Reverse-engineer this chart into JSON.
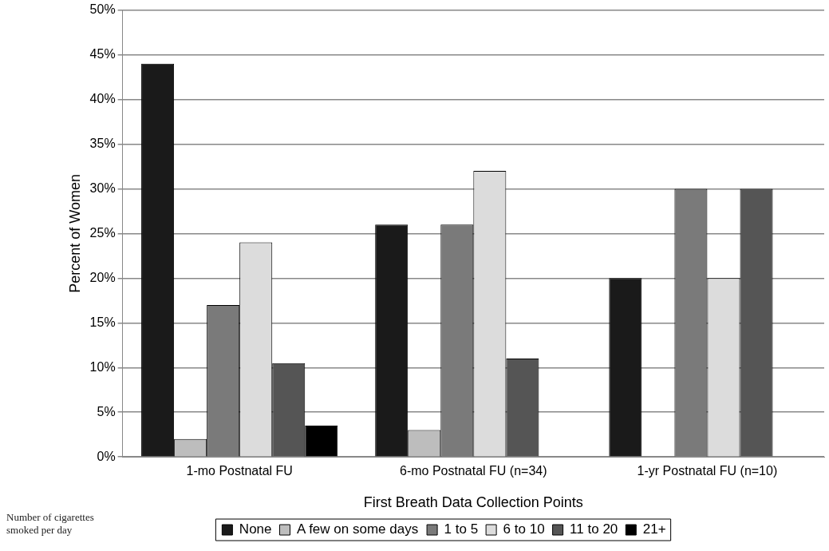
{
  "chart_data": {
    "type": "bar",
    "xlabel": "First Breath Data Collection Points",
    "ylabel": "Percent of Women",
    "legend_title": "Number of cigarettes smoked per day",
    "categories": [
      "1-mo Postnatal FU",
      "6-mo Postnatal FU (n=34)",
      "1-yr Postnatal FU (n=10)"
    ],
    "series": [
      {
        "name": "None",
        "color": "#1a1a1a",
        "values": [
          44,
          26,
          20
        ]
      },
      {
        "name": "A few on some days",
        "color": "#bdbdbd",
        "values": [
          2,
          3,
          0
        ]
      },
      {
        "name": "1 to 5",
        "color": "#7a7a7a",
        "values": [
          17,
          26,
          30
        ]
      },
      {
        "name": "6 to 10",
        "color": "#dcdcdc",
        "values": [
          24,
          32,
          20
        ]
      },
      {
        "name": "11 to 20",
        "color": "#555555",
        "values": [
          10.5,
          11,
          30
        ]
      },
      {
        "name": "21+",
        "color": "#000000",
        "values": [
          3.5,
          0,
          0
        ]
      }
    ],
    "ylim": [
      0,
      50
    ],
    "yticks": [
      {
        "value": 0,
        "label": "0%"
      },
      {
        "value": 5,
        "label": "5%"
      },
      {
        "value": 10,
        "label": "10%"
      },
      {
        "value": 15,
        "label": "15%"
      },
      {
        "value": 20,
        "label": "20%"
      },
      {
        "value": 25,
        "label": "25%"
      },
      {
        "value": 30,
        "label": "30%"
      },
      {
        "value": 35,
        "label": "35%"
      },
      {
        "value": 40,
        "label": "40%"
      },
      {
        "value": 45,
        "label": "45%"
      },
      {
        "value": 50,
        "label": "50%"
      }
    ],
    "grid": "y",
    "legend": "bottom"
  }
}
